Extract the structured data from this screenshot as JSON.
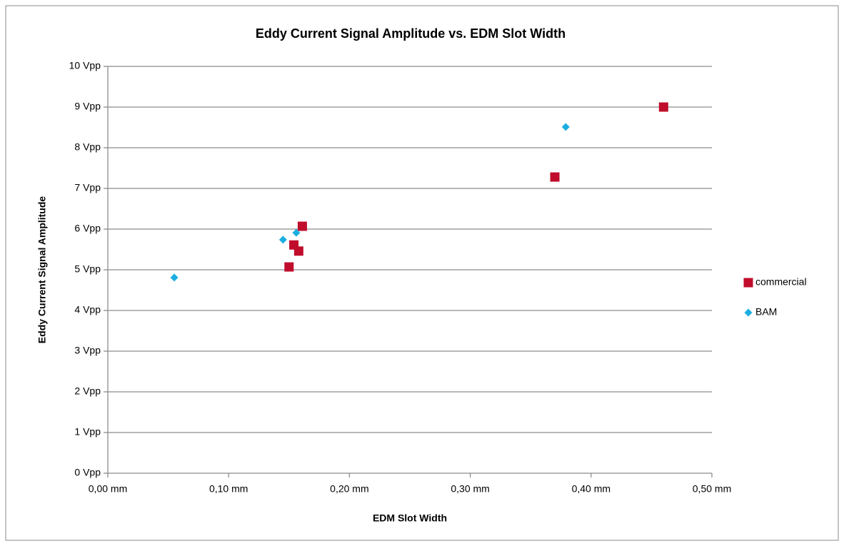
{
  "chart_data": {
    "type": "scatter",
    "title": "Eddy Current Signal Amplitude vs. EDM Slot Width",
    "x_label": "EDM Slot Width",
    "y_label": "Eddy Current Signal Amplitude",
    "xlim": [
      0,
      0.5
    ],
    "ylim": [
      0,
      10
    ],
    "xticks": [
      {
        "value": 0,
        "label": "0,00 mm"
      },
      {
        "value": 0.1,
        "label": "0,10 mm"
      },
      {
        "value": 0.2,
        "label": "0,20 mm"
      },
      {
        "value": 0.3,
        "label": "0,30 mm"
      },
      {
        "value": 0.4,
        "label": "0,40 mm"
      },
      {
        "value": 0.5,
        "label": "0,50 mm"
      }
    ],
    "yticks": [
      {
        "value": 0,
        "label": "0 Vpp"
      },
      {
        "value": 1,
        "label": "1 Vpp"
      },
      {
        "value": 2,
        "label": "2 Vpp"
      },
      {
        "value": 3,
        "label": "3 Vpp"
      },
      {
        "value": 4,
        "label": "4 Vpp"
      },
      {
        "value": 5,
        "label": "5 Vpp"
      },
      {
        "value": 6,
        "label": "6 Vpp"
      },
      {
        "value": 7,
        "label": "7 Vpp"
      },
      {
        "value": 8,
        "label": "8 Vpp"
      },
      {
        "value": 9,
        "label": "9 Vpp"
      },
      {
        "value": 10,
        "label": "10 Vpp"
      }
    ],
    "grid": true,
    "legend": "right",
    "series": [
      {
        "name": "commercial",
        "color": "#c00d2b",
        "marker": "square",
        "x": [
          0.46,
          0.37,
          0.161,
          0.154,
          0.158,
          0.15
        ],
        "values": [
          9.0,
          7.28,
          6.07,
          5.61,
          5.46,
          5.07
        ]
      },
      {
        "name": "BAM",
        "color": "#1aaee0",
        "marker": "diamond",
        "x": [
          0.055,
          0.145,
          0.156,
          0.379
        ],
        "values": [
          4.81,
          5.74,
          5.91,
          8.51
        ]
      }
    ]
  }
}
